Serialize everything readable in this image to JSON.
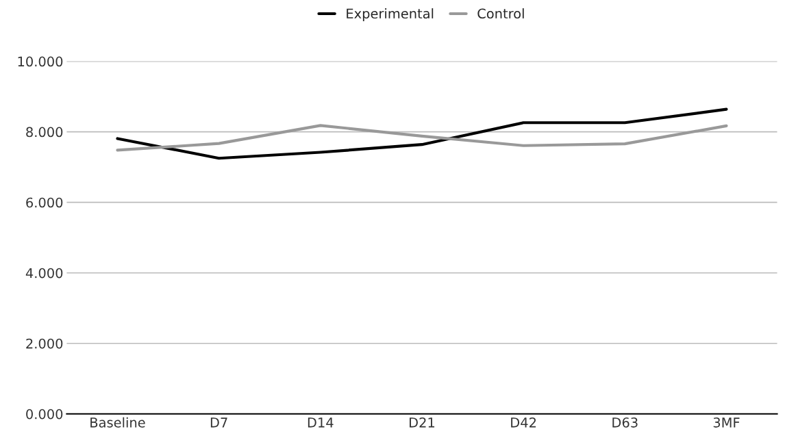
{
  "chart_data": {
    "type": "line",
    "categories": [
      "Baseline",
      "D7",
      "D14",
      "D21",
      "D42",
      "D63",
      "3MF"
    ],
    "series": [
      {
        "name": "Experimental",
        "color": "#000000",
        "values": [
          7.81,
          7.25,
          7.42,
          7.64,
          8.26,
          8.26,
          8.64
        ]
      },
      {
        "name": "Control",
        "color": "#999999",
        "values": [
          7.48,
          7.67,
          8.18,
          7.88,
          7.61,
          7.66,
          8.17
        ]
      }
    ],
    "ylim": [
      0,
      10
    ],
    "yticks": [
      {
        "value": 0,
        "label": "0.000"
      },
      {
        "value": 2,
        "label": "2.000"
      },
      {
        "value": 4,
        "label": "4.000"
      },
      {
        "value": 6,
        "label": "6.000"
      },
      {
        "value": 8,
        "label": "8.000"
      },
      {
        "value": 10,
        "label": "10.000"
      }
    ],
    "grid": "y",
    "legend": "top",
    "marker": "none",
    "line_style": "solid"
  }
}
